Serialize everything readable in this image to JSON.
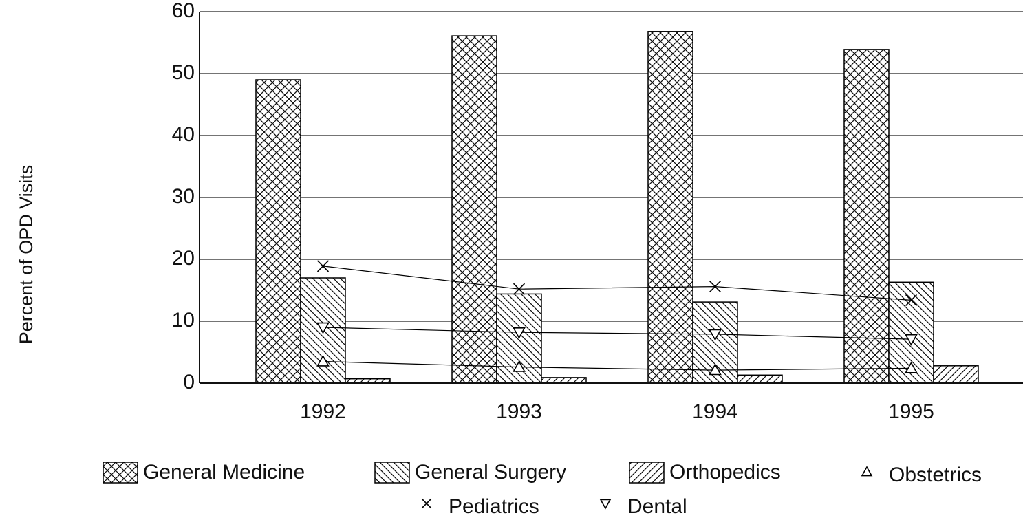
{
  "chart_data": {
    "type": "bar",
    "y_label": "Percent of OPD Visits",
    "categories": [
      "1992",
      "1993",
      "1994",
      "1995"
    ],
    "series": [
      {
        "name": "General Medicine",
        "type": "bar",
        "hatch": "crosshatch",
        "color": "#000000",
        "values": [
          49,
          56.1,
          56.8,
          53.9
        ]
      },
      {
        "name": "General Surgery",
        "type": "bar",
        "hatch": "backslash",
        "color": "#000000",
        "values": [
          17,
          14.4,
          13.1,
          16.3
        ]
      },
      {
        "name": "Orthopedics",
        "type": "bar",
        "hatch": "slash",
        "color": "#000000",
        "values": [
          0.7,
          0.9,
          1.3,
          2.8
        ]
      },
      {
        "name": "Obstetrics",
        "type": "line",
        "marker": "triangle-up",
        "color": "#000000",
        "values": [
          3.5,
          2.6,
          2.1,
          2.4
        ]
      },
      {
        "name": "Pediatrics",
        "type": "line",
        "marker": "x",
        "color": "#000000",
        "values": [
          18.9,
          15.2,
          15.6,
          13.4
        ]
      },
      {
        "name": "Dental",
        "type": "line",
        "marker": "triangle-down",
        "color": "#000000",
        "values": [
          9,
          8.2,
          7.9,
          7.1
        ]
      }
    ],
    "ylim": [
      0,
      60
    ],
    "yticks": [
      0,
      10,
      20,
      30,
      40,
      50,
      60
    ],
    "grid": true,
    "legend": "bottom"
  }
}
